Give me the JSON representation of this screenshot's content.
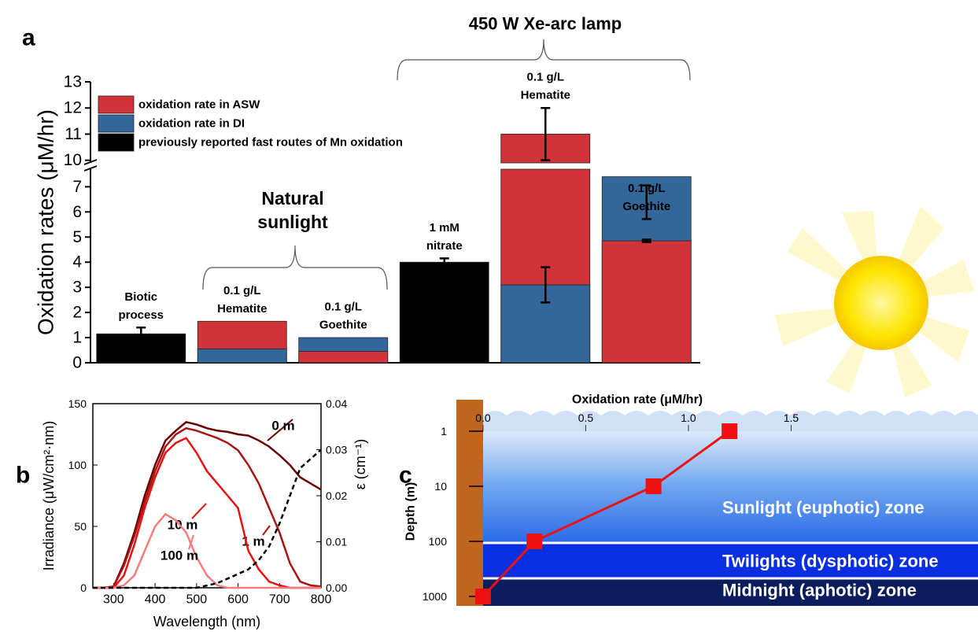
{
  "chart_data": [
    {
      "type": "bar",
      "label": "a",
      "ylabel": "Oxidation rates (μM/hr)",
      "categories": [
        [
          "Biotic",
          "process"
        ],
        [
          "0.1 g/L",
          "Hematite"
        ],
        [
          "0.1 g/L",
          "Goethite"
        ],
        [
          "1 mM",
          "nitrate"
        ],
        [
          "0.1 g/L",
          "Hematite"
        ],
        [
          "0.1 g/L",
          "Goethite"
        ]
      ],
      "annotations": [
        [
          "Natural",
          "sunlight"
        ],
        "450 W Xe-arc lamp"
      ],
      "series": [
        {
          "name": "oxidation rate in ASW",
          "color": "#d13438",
          "values": [
            null,
            1.65,
            0.45,
            null,
            11.0,
            4.85
          ],
          "errors": [
            null,
            null,
            null,
            null,
            1.0,
            0.05
          ]
        },
        {
          "name": "oxidation rate in DI",
          "color": "#336699",
          "values": [
            null,
            0.55,
            1.0,
            null,
            3.1,
            7.4
          ],
          "errors": [
            null,
            null,
            null,
            null,
            0.7,
            0.35
          ]
        },
        {
          "name": "previously reported fast routes of Mn oxidation",
          "color": "#000000",
          "values": [
            1.15,
            null,
            null,
            4.0,
            null,
            null
          ],
          "errors": [
            0.25,
            null,
            null,
            0.15,
            null,
            null
          ]
        }
      ],
      "ylim": [
        0,
        7.7
      ],
      "yticks": [
        0,
        1,
        2,
        3,
        4,
        5,
        6,
        7
      ],
      "y_break": {
        "ylim": [
          9.9,
          13
        ],
        "yticks": [
          10,
          11,
          12,
          13
        ]
      }
    },
    {
      "type": "line",
      "label": "b",
      "xlabel": "Wavelength (nm)",
      "ylabel": "Irradiance (μW/cm²·nm)",
      "y2label": "ε (cm⁻¹)",
      "x": [
        250,
        275,
        300,
        325,
        350,
        375,
        400,
        425,
        450,
        475,
        500,
        525,
        550,
        575,
        600,
        625,
        650,
        675,
        700,
        725,
        750,
        775,
        800
      ],
      "series": [
        {
          "name": "0 m",
          "color": "#6b0000",
          "values": [
            0,
            0,
            1,
            20,
            45,
            75,
            100,
            120,
            128,
            135,
            133,
            130,
            128,
            127,
            125,
            124,
            120,
            115,
            108,
            100,
            90,
            85,
            80
          ]
        },
        {
          "name": "1 m",
          "color": "#a81414",
          "values": [
            0,
            0,
            1,
            18,
            42,
            70,
            95,
            115,
            125,
            130,
            128,
            125,
            122,
            118,
            112,
            100,
            85,
            65,
            45,
            20,
            5,
            2,
            1
          ]
        },
        {
          "name": "10 m",
          "color": "#e8100f",
          "values": [
            0,
            0,
            0,
            10,
            35,
            65,
            90,
            110,
            118,
            122,
            110,
            95,
            85,
            75,
            65,
            30,
            15,
            5,
            2,
            0,
            0,
            0,
            0
          ]
        },
        {
          "name": "100 m",
          "color": "#f47c7c",
          "values": [
            0,
            0,
            0,
            2,
            10,
            30,
            50,
            60,
            55,
            45,
            25,
            10,
            2,
            0,
            0,
            0,
            0,
            0,
            0,
            0,
            0,
            0,
            0
          ]
        },
        {
          "axis": "y2",
          "color": "#000000",
          "dashed": true,
          "values": [
            0,
            0,
            0,
            0,
            0,
            0,
            0,
            0,
            0,
            0,
            0,
            0.0005,
            0.001,
            0.002,
            0.003,
            0.004,
            0.006,
            0.009,
            0.014,
            0.02,
            0.026,
            0.028,
            0.03
          ]
        }
      ],
      "xlim": [
        250,
        800
      ],
      "xticks": [
        300,
        400,
        500,
        600,
        700,
        800
      ],
      "ylim": [
        0,
        150
      ],
      "yticks": [
        0,
        50,
        100,
        150
      ],
      "y2lim": [
        0,
        0.04
      ],
      "y2ticks": [
        {
          "value": 0,
          "label": "0.00"
        },
        {
          "value": 0.01,
          "label": "0.01"
        },
        {
          "value": 0.02,
          "label": "0.02"
        },
        {
          "value": 0.03,
          "label": "0.03"
        },
        {
          "value": 0.04,
          "label": "0.04"
        }
      ]
    },
    {
      "type": "line",
      "label": "c",
      "xlabel": "Oxidation rate (μM/hr)",
      "ylabel": "Depth (m)",
      "x": [
        1.2,
        0.83,
        0.25,
        0.0
      ],
      "y": [
        1,
        10,
        100,
        1000
      ],
      "color": "#ee1111",
      "xlim": [
        -0.13,
        2.41
      ],
      "xticks": [
        {
          "value": 0,
          "label": "0.0"
        },
        {
          "value": 0.5,
          "label": "0.5"
        },
        {
          "value": 1,
          "label": "1.0"
        },
        {
          "value": 1.5,
          "label": "1.5"
        }
      ],
      "ylim": [
        1,
        1000
      ],
      "yticks": [
        1,
        10,
        100,
        1000
      ],
      "yscale": "log",
      "zones": [
        "Sunlight (euphotic) zone",
        "Twilights (dysphotic) zone",
        "Midnight (aphotic) zone"
      ]
    }
  ]
}
